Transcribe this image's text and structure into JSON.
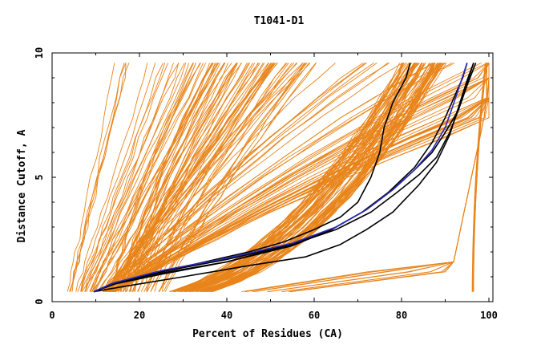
{
  "chart_data": {
    "type": "line",
    "title": "T1041-D1",
    "xlabel": "Percent of Residues (CA)",
    "ylabel": "Distance Cutoff, A",
    "xlim": [
      0,
      100
    ],
    "ylim": [
      0,
      10
    ],
    "x_ticks": [
      "0",
      "20",
      "40",
      "60",
      "80",
      "100"
    ],
    "y_ticks": [
      "0",
      "5",
      "10"
    ],
    "grid": false,
    "legend": "none",
    "colors": {
      "bundle": "#e8841a",
      "reference": "#000000",
      "highlight": "#2a2ab8",
      "axis": "#000000",
      "background": "#ffffff"
    },
    "series": [
      {
        "role": "reference",
        "values": [
          [
            9.5,
            0.4
          ],
          [
            15,
            0.75
          ],
          [
            25,
            1.2
          ],
          [
            35,
            1.6
          ],
          [
            45,
            2.0
          ],
          [
            53,
            2.4
          ],
          [
            60,
            2.9
          ],
          [
            66,
            3.4
          ],
          [
            70,
            4.0
          ],
          [
            73,
            5.0
          ],
          [
            75,
            6.0
          ],
          [
            76,
            7.0
          ],
          [
            78,
            8.0
          ],
          [
            81,
            9.0
          ],
          [
            82,
            9.6
          ]
        ]
      },
      {
        "role": "reference",
        "values": [
          [
            9.5,
            0.4
          ],
          [
            16,
            0.6
          ],
          [
            30,
            1.0
          ],
          [
            45,
            1.45
          ],
          [
            58,
            1.8
          ],
          [
            66,
            2.3
          ],
          [
            72,
            2.9
          ],
          [
            78,
            3.6
          ],
          [
            84,
            4.7
          ],
          [
            88,
            5.6
          ],
          [
            91,
            6.7
          ],
          [
            93,
            7.8
          ],
          [
            95,
            8.9
          ],
          [
            96.5,
            9.6
          ]
        ]
      },
      {
        "role": "reference",
        "values": [
          [
            9.5,
            0.4
          ],
          [
            14,
            0.7
          ],
          [
            25,
            1.1
          ],
          [
            40,
            1.6
          ],
          [
            55,
            2.3
          ],
          [
            65,
            2.9
          ],
          [
            73,
            3.6
          ],
          [
            79,
            4.4
          ],
          [
            84,
            5.1
          ],
          [
            88,
            5.8
          ],
          [
            91,
            6.8
          ],
          [
            93,
            7.7
          ],
          [
            95,
            8.8
          ],
          [
            96.5,
            9.6
          ]
        ]
      },
      {
        "role": "reference",
        "values": [
          [
            9.5,
            0.4
          ],
          [
            14,
            0.75
          ],
          [
            25,
            1.15
          ],
          [
            40,
            1.6
          ],
          [
            55,
            2.25
          ],
          [
            64,
            2.9
          ],
          [
            72,
            3.7
          ],
          [
            78,
            4.5
          ],
          [
            83,
            5.3
          ],
          [
            87,
            6.0
          ],
          [
            90,
            6.8
          ],
          [
            93,
            7.7
          ],
          [
            95,
            8.7
          ],
          [
            97,
            9.6
          ]
        ]
      },
      {
        "role": "reference",
        "values": [
          [
            9.5,
            0.4
          ],
          [
            14,
            0.75
          ],
          [
            25,
            1.2
          ],
          [
            40,
            1.7
          ],
          [
            55,
            2.3
          ],
          [
            64,
            2.9
          ],
          [
            71,
            3.6
          ],
          [
            77,
            4.4
          ],
          [
            83,
            5.4
          ],
          [
            87,
            6.4
          ],
          [
            90,
            7.4
          ],
          [
            92,
            8.2
          ],
          [
            94,
            9.0
          ],
          [
            95,
            9.6
          ]
        ]
      },
      {
        "role": "highlight",
        "values": [
          [
            9.5,
            0.4
          ],
          [
            14,
            0.75
          ],
          [
            25,
            1.25
          ],
          [
            40,
            1.75
          ],
          [
            55,
            2.35
          ],
          [
            65,
            3.0
          ],
          [
            72,
            3.7
          ],
          [
            78,
            4.5
          ],
          [
            83,
            5.3
          ],
          [
            87,
            6.1
          ],
          [
            90,
            7.0
          ],
          [
            92,
            8.0
          ],
          [
            93.5,
            8.8
          ],
          [
            95,
            9.6
          ]
        ]
      }
    ]
  }
}
